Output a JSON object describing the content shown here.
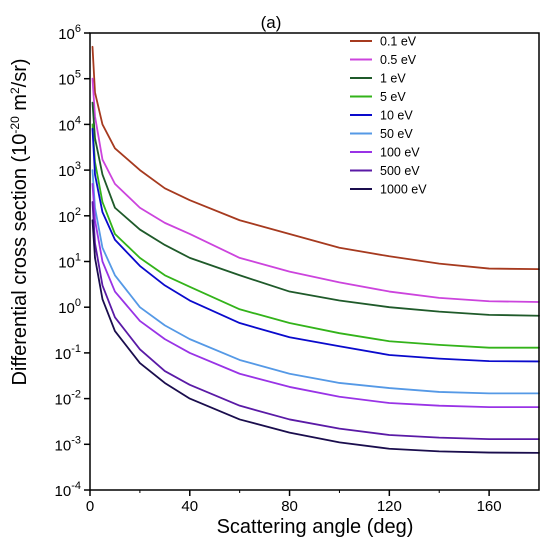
{
  "chart_data": {
    "type": "line",
    "panel_label": "(a)",
    "xlabel": "Scattering angle (deg)",
    "ylabel": "Differential cross section (10",
    "ylabel_exp": "-20",
    "ylabel_unit": " m",
    "ylabel_unit_sup": "2",
    "ylabel_end": "/sr)",
    "xlim": [
      0,
      180
    ],
    "ylim_exp": [
      -4,
      6
    ],
    "y_scale": "log",
    "grid": false,
    "legend_position": "top-right",
    "x_ticks": [
      {
        "value": 0,
        "label": "0"
      },
      {
        "value": 40,
        "label": "40"
      },
      {
        "value": 80,
        "label": "80"
      },
      {
        "value": 120,
        "label": "120"
      },
      {
        "value": 160,
        "label": "160"
      }
    ],
    "y_ticks": [
      {
        "value": 6,
        "base": "10",
        "exp": "6"
      },
      {
        "value": 5,
        "base": "10",
        "exp": "5"
      },
      {
        "value": 4,
        "base": "10",
        "exp": "4"
      },
      {
        "value": 3,
        "base": "10",
        "exp": "3"
      },
      {
        "value": 2,
        "base": "10",
        "exp": "2"
      },
      {
        "value": 1,
        "base": "10",
        "exp": "1"
      },
      {
        "value": 0,
        "base": "10",
        "exp": "0"
      },
      {
        "value": -1,
        "base": "10",
        "exp": "-1"
      },
      {
        "value": -2,
        "base": "10",
        "exp": "-2"
      },
      {
        "value": -3,
        "base": "10",
        "exp": "-3"
      },
      {
        "value": -4,
        "base": "10",
        "exp": "-4"
      }
    ],
    "x": [
      1,
      2,
      5,
      10,
      20,
      30,
      40,
      60,
      80,
      100,
      120,
      140,
      160,
      180
    ],
    "series": [
      {
        "name": "0.1 eV",
        "color": "#a63a1f",
        "values": [
          500000,
          50000,
          10000,
          3000,
          1000,
          400,
          220,
          80,
          40,
          20,
          13,
          9,
          7,
          6.8
        ]
      },
      {
        "name": "0.5 eV",
        "color": "#cc44dd",
        "values": [
          100000,
          15000,
          1700,
          500,
          150,
          70,
          40,
          12,
          6,
          3.5,
          2.2,
          1.6,
          1.35,
          1.3
        ]
      },
      {
        "name": "1 eV",
        "color": "#1f5a2a",
        "values": [
          30000,
          5000,
          800,
          150,
          50,
          23,
          12,
          5,
          2.2,
          1.4,
          1.0,
          0.8,
          0.68,
          0.65
        ]
      },
      {
        "name": "5 eV",
        "color": "#33b31a",
        "values": [
          10000,
          1500,
          200,
          40,
          12,
          5,
          2.8,
          0.9,
          0.45,
          0.27,
          0.18,
          0.15,
          0.13,
          0.13
        ]
      },
      {
        "name": "10 eV",
        "color": "#0a0acc",
        "values": [
          8000,
          800,
          120,
          30,
          8,
          3,
          1.4,
          0.45,
          0.22,
          0.14,
          0.09,
          0.075,
          0.066,
          0.065
        ]
      },
      {
        "name": "50 eV",
        "color": "#5599e6",
        "values": [
          1000,
          150,
          20,
          5,
          1,
          0.4,
          0.2,
          0.07,
          0.035,
          0.022,
          0.017,
          0.014,
          0.013,
          0.013
        ]
      },
      {
        "name": "100 eV",
        "color": "#9933e6",
        "values": [
          500,
          80,
          10,
          2.2,
          0.5,
          0.2,
          0.1,
          0.035,
          0.018,
          0.011,
          0.008,
          0.007,
          0.0065,
          0.0065
        ]
      },
      {
        "name": "500 eV",
        "color": "#5a1aa6",
        "values": [
          200,
          25,
          3,
          0.6,
          0.12,
          0.04,
          0.02,
          0.007,
          0.0035,
          0.0022,
          0.0016,
          0.0014,
          0.0013,
          0.0013
        ]
      },
      {
        "name": "1000 eV",
        "color": "#1a0d4d",
        "values": [
          80,
          12,
          1.5,
          0.3,
          0.06,
          0.022,
          0.01,
          0.0035,
          0.0018,
          0.0011,
          0.0008,
          0.0007,
          0.00066,
          0.00065
        ]
      }
    ]
  }
}
